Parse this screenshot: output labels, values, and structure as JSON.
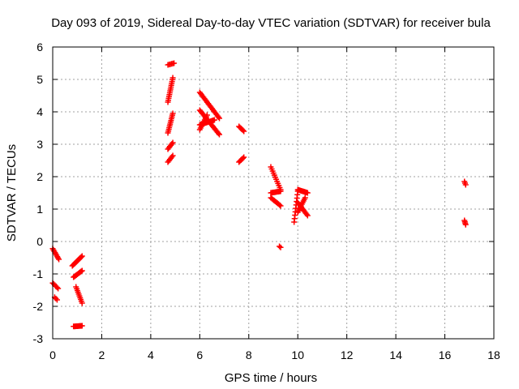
{
  "chart_data": {
    "type": "scatter",
    "title": "Day 093 of 2019, Sidereal Day-to-day VTEC variation (SDTVAR) for receiver bula",
    "xlabel": "GPS time / hours",
    "ylabel": "SDTVAR / TECUs",
    "xlim": [
      0,
      18
    ],
    "ylim": [
      -3,
      6
    ],
    "xticks": [
      0,
      2,
      4,
      6,
      8,
      10,
      12,
      14,
      16,
      18
    ],
    "yticks": [
      -3,
      -2,
      -1,
      0,
      1,
      2,
      3,
      4,
      5,
      6
    ],
    "grid": true,
    "legend": "none",
    "series_color": "#ff0000",
    "segments": [
      {
        "from": [
          0.0,
          -0.22
        ],
        "to": [
          0.25,
          -0.55
        ],
        "n": 9
      },
      {
        "from": [
          0.0,
          -1.28
        ],
        "to": [
          0.22,
          -1.45
        ],
        "n": 6
      },
      {
        "from": [
          0.08,
          -1.72
        ],
        "to": [
          0.18,
          -1.8
        ],
        "n": 3
      },
      {
        "from": [
          0.8,
          -0.75
        ],
        "to": [
          1.2,
          -0.45
        ],
        "n": 12
      },
      {
        "from": [
          0.85,
          -1.1
        ],
        "to": [
          1.2,
          -0.9
        ],
        "n": 10
      },
      {
        "from": [
          0.95,
          -1.4
        ],
        "to": [
          1.2,
          -1.9
        ],
        "n": 10
      },
      {
        "from": [
          0.85,
          -2.62
        ],
        "to": [
          1.2,
          -2.6
        ],
        "n": 10
      },
      {
        "from": [
          4.7,
          5.45
        ],
        "to": [
          4.95,
          5.5
        ],
        "n": 6
      },
      {
        "from": [
          4.7,
          4.3
        ],
        "to": [
          4.9,
          5.05
        ],
        "n": 14
      },
      {
        "from": [
          4.7,
          3.35
        ],
        "to": [
          4.9,
          3.95
        ],
        "n": 12
      },
      {
        "from": [
          4.7,
          2.85
        ],
        "to": [
          4.9,
          3.05
        ],
        "n": 6
      },
      {
        "from": [
          4.7,
          2.45
        ],
        "to": [
          4.9,
          2.65
        ],
        "n": 6
      },
      {
        "from": [
          6.0,
          4.6
        ],
        "to": [
          6.8,
          3.8
        ],
        "n": 22
      },
      {
        "from": [
          6.0,
          4.05
        ],
        "to": [
          6.8,
          3.3
        ],
        "n": 22
      },
      {
        "from": [
          6.0,
          3.6
        ],
        "to": [
          6.6,
          3.75
        ],
        "n": 16
      },
      {
        "from": [
          6.0,
          3.45
        ],
        "to": [
          6.3,
          3.9
        ],
        "n": 10
      },
      {
        "from": [
          7.6,
          3.55
        ],
        "to": [
          7.8,
          3.4
        ],
        "n": 6
      },
      {
        "from": [
          7.6,
          2.45
        ],
        "to": [
          7.8,
          2.6
        ],
        "n": 6
      },
      {
        "from": [
          8.9,
          2.3
        ],
        "to": [
          9.3,
          1.6
        ],
        "n": 12
      },
      {
        "from": [
          8.9,
          1.5
        ],
        "to": [
          9.3,
          1.55
        ],
        "n": 10
      },
      {
        "from": [
          8.9,
          1.35
        ],
        "to": [
          9.3,
          1.1
        ],
        "n": 10
      },
      {
        "from": [
          9.25,
          -0.15
        ],
        "to": [
          9.3,
          -0.18
        ],
        "n": 2
      },
      {
        "from": [
          9.85,
          0.6
        ],
        "to": [
          10.0,
          1.55
        ],
        "n": 10
      },
      {
        "from": [
          10.0,
          1.6
        ],
        "to": [
          10.4,
          1.5
        ],
        "n": 12
      },
      {
        "from": [
          10.0,
          1.2
        ],
        "to": [
          10.4,
          0.8
        ],
        "n": 12
      },
      {
        "from": [
          10.0,
          0.9
        ],
        "to": [
          10.3,
          1.35
        ],
        "n": 10
      },
      {
        "from": [
          16.8,
          1.85
        ],
        "to": [
          16.85,
          1.75
        ],
        "n": 3
      },
      {
        "from": [
          16.8,
          0.65
        ],
        "to": [
          16.85,
          0.52
        ],
        "n": 4
      }
    ]
  }
}
